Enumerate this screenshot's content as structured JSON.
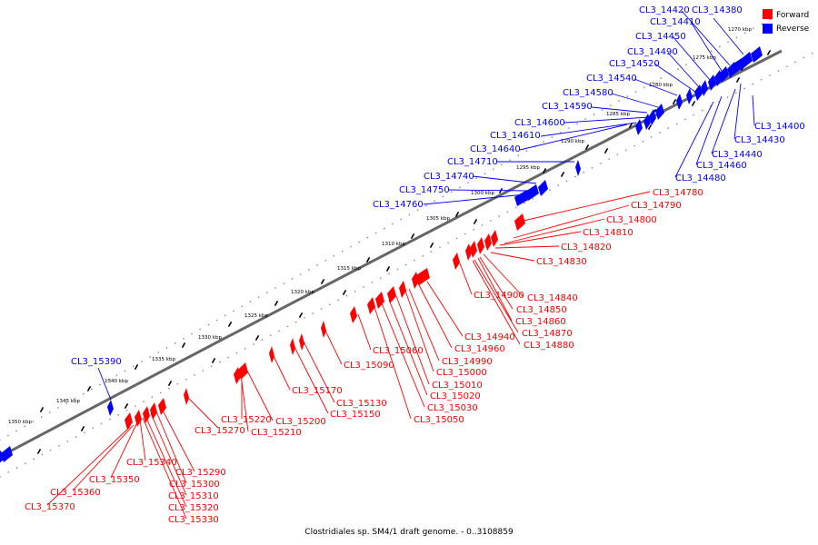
{
  "caption": "Clostridiales sp. SM4/1 draft genome. - 0..3108859",
  "legend": {
    "forward_label": "Forward",
    "reverse_label": "Reverse",
    "forward_color": "#ff0000",
    "reverse_color": "#0000ff"
  },
  "ticks": [
    "1270 kbp",
    "1275 kbp",
    "1280 kbp",
    "1285 kbp",
    "1290 kbp",
    "1295 kbp",
    "1300 kbp",
    "1305 kbp",
    "1310 kbp",
    "1315 kbp",
    "1320 kbp",
    "1325 kbp",
    "1330 kbp",
    "1335 kbp",
    "1340 kbp",
    "1345 kbp",
    "1350 kbp"
  ],
  "reverse_genes": [
    "CL3_14380",
    "CL3_14400",
    "CL3_14410",
    "CL3_14420",
    "CL3_14430",
    "CL3_14440",
    "CL3_14450",
    "CL3_14460",
    "CL3_14480",
    "CL3_14490",
    "CL3_14520",
    "CL3_14540",
    "CL3_14580",
    "CL3_14590",
    "CL3_14600",
    "CL3_14610",
    "CL3_14640",
    "CL3_14710",
    "CL3_14740",
    "CL3_14750",
    "CL3_14760",
    "CL3_15390"
  ],
  "forward_genes": [
    "CL3_14780",
    "CL3_14790",
    "CL3_14800",
    "CL3_14810",
    "CL3_14820",
    "CL3_14830",
    "CL3_14840",
    "CL3_14850",
    "CL3_14860",
    "CL3_14870",
    "CL3_14880",
    "CL3_14900",
    "CL3_14940",
    "CL3_14960",
    "CL3_14990",
    "CL3_15000",
    "CL3_15010",
    "CL3_15020",
    "CL3_15030",
    "CL3_15050",
    "CL3_15060",
    "CL3_15090",
    "CL3_15130",
    "CL3_15150",
    "CL3_15170",
    "CL3_15200",
    "CL3_15210",
    "CL3_15220",
    "CL3_15270",
    "CL3_15290",
    "CL3_15300",
    "CL3_15310",
    "CL3_15320",
    "CL3_15330",
    "CL3_15340",
    "CL3_15350",
    "CL3_15360",
    "CL3_15370"
  ]
}
